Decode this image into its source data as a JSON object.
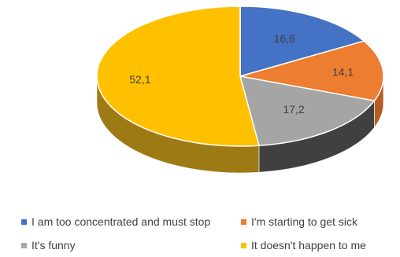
{
  "chart_data": {
    "type": "pie",
    "style": "3d",
    "decimal_separator": ",",
    "legend_position": "bottom",
    "slices": [
      {
        "label": "I am too concentrated and must stop",
        "value": 16.6,
        "display": "16,6",
        "color": "#4472C4",
        "side_color": "#2F5597"
      },
      {
        "label": "I'm starting to get sick",
        "value": 14.1,
        "display": "14,1",
        "color": "#ED7D31",
        "side_color": "#B55D22"
      },
      {
        "label": "It's funny",
        "value": 17.2,
        "display": "17,2",
        "color": "#A5A5A5",
        "side_color": "#404040"
      },
      {
        "label": "It doesn't happen to me",
        "value": 52.1,
        "display": "52,1",
        "color": "#FFC000",
        "side_color": "#9E7A14"
      }
    ]
  }
}
